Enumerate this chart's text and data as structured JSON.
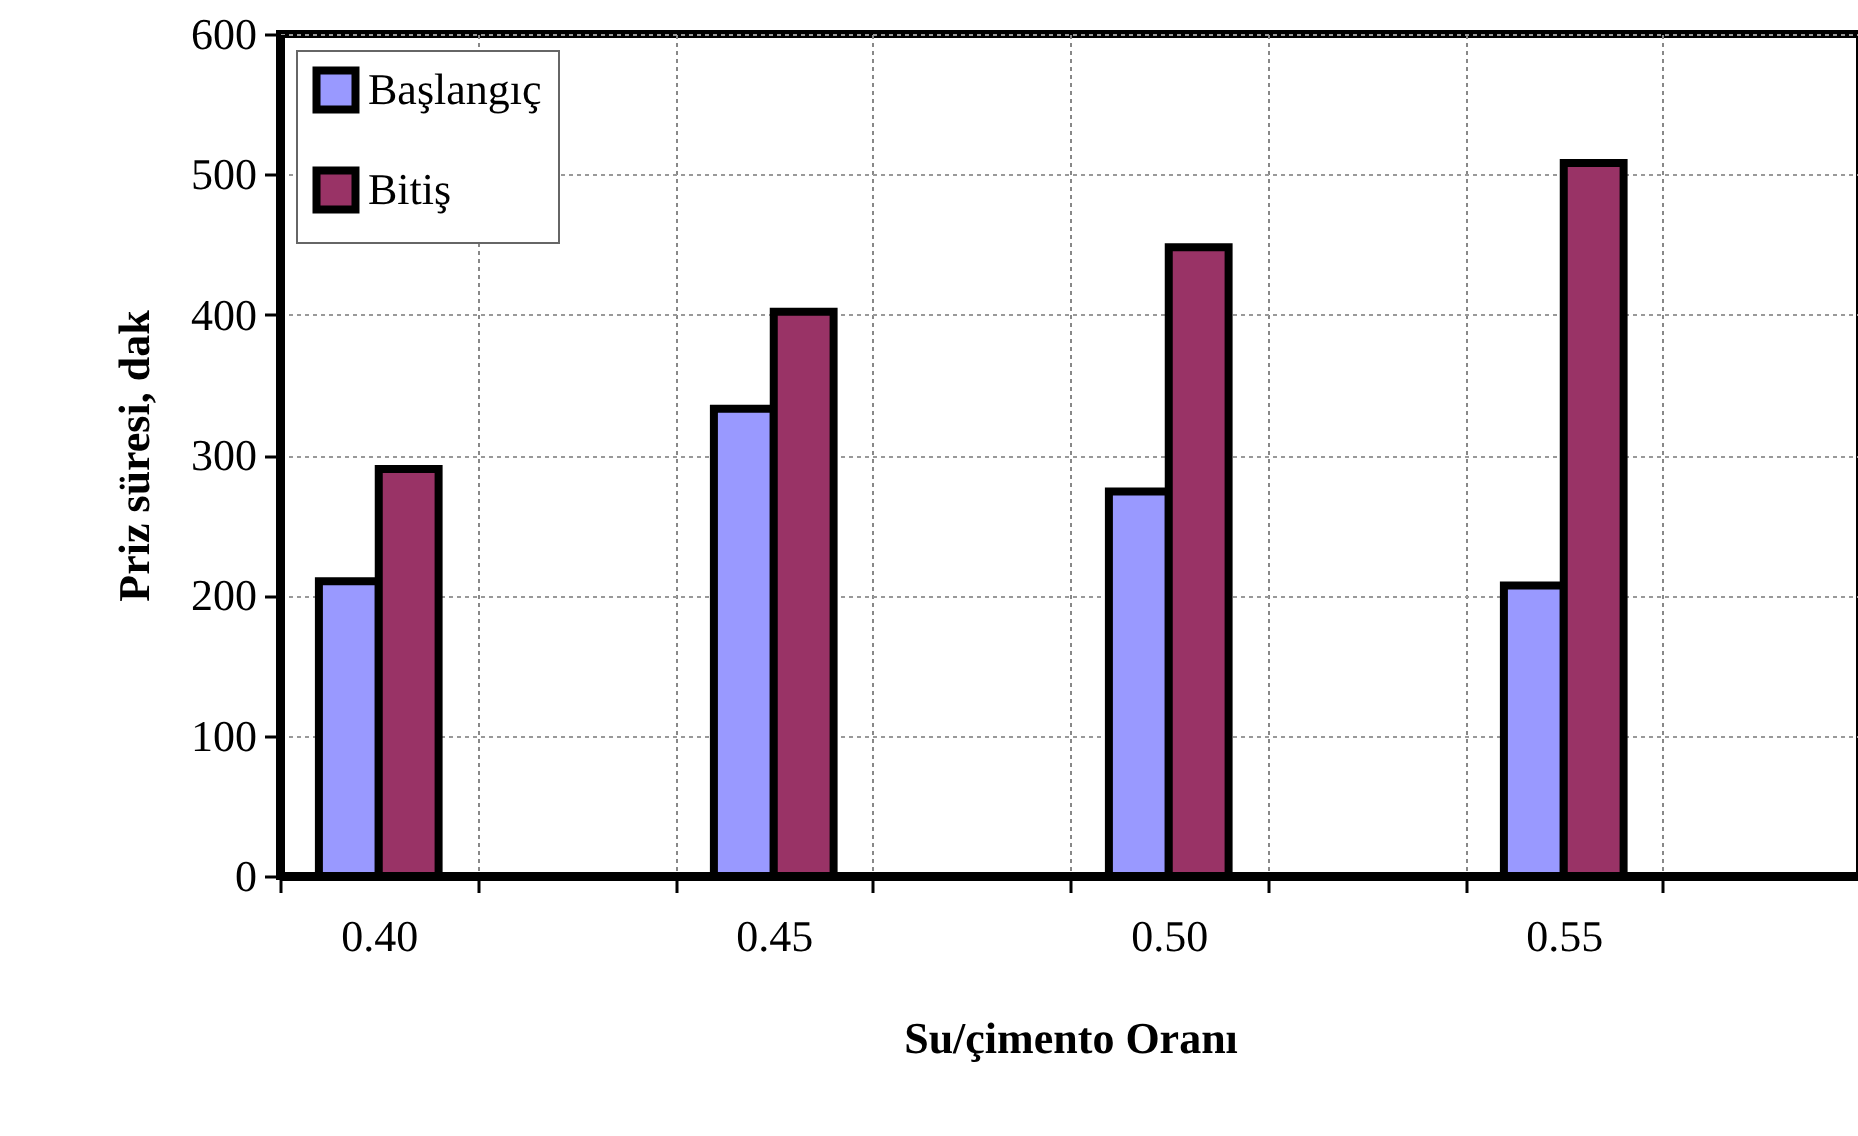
{
  "chart_data": {
    "type": "bar",
    "xlabel": "Su/çimento Oranı",
    "ylabel": "Priz süresi, dak",
    "categories": [
      "0.40",
      null,
      "0.45",
      null,
      "0.50",
      null,
      "0.55",
      null
    ],
    "series": [
      {
        "name": "Başlangıç",
        "color": "#9999ff",
        "values": [
          210,
          null,
          333,
          null,
          274,
          null,
          207,
          null
        ]
      },
      {
        "name": "Bitiş",
        "color": "#993366",
        "values": [
          290,
          null,
          402,
          null,
          448,
          null,
          508,
          null
        ]
      }
    ],
    "ylim": [
      0,
      600
    ],
    "yticks": [
      0,
      100,
      200,
      300,
      400,
      500,
      600
    ],
    "grid": true,
    "legend": "top left"
  }
}
